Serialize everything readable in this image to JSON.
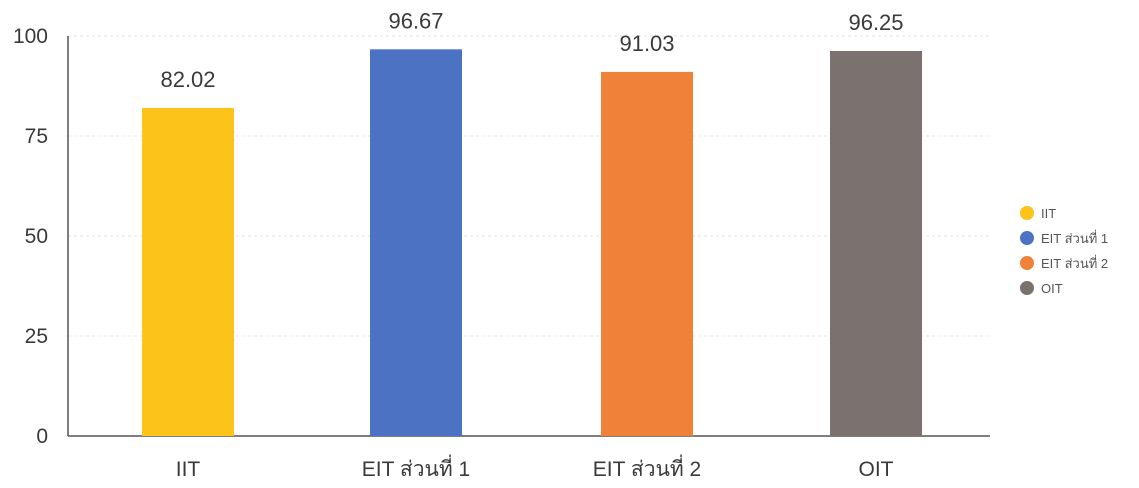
{
  "chart_data": {
    "type": "bar",
    "title": "",
    "xlabel": "",
    "ylabel": "",
    "categories": [
      "IIT",
      "EIT ส่วนที่ 1",
      "EIT ส่วนที่ 2",
      "OIT"
    ],
    "values": [
      82.02,
      96.67,
      91.03,
      96.25
    ],
    "value_labels": [
      "82.02",
      "96.67",
      "91.03",
      "96.25"
    ],
    "colors": [
      "#FCC419",
      "#4C72C4",
      "#EF8139",
      "#7B716E"
    ],
    "ylim": [
      0,
      100
    ],
    "yticks": [
      0,
      25,
      50,
      75,
      100
    ],
    "ytick_labels": [
      "0",
      "25",
      "50",
      "75",
      "100"
    ],
    "grid": true,
    "legend": {
      "placement": "right",
      "entries": [
        "IIT",
        "EIT ส่วนที่ 1",
        "EIT ส่วนที่ 2",
        "OIT"
      ]
    }
  }
}
